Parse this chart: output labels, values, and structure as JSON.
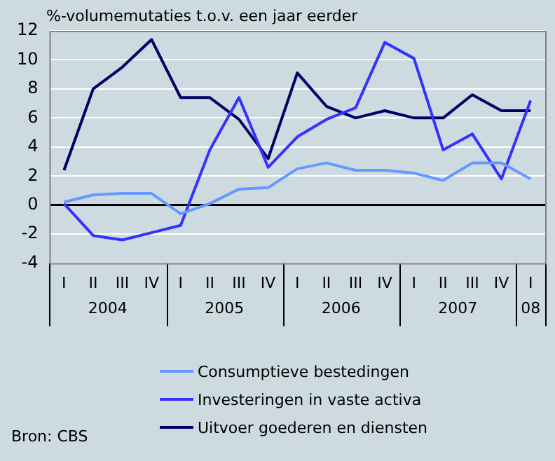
{
  "chart_data": {
    "type": "line",
    "title": "%-volumemutaties t.o.v. een jaar eerder",
    "categories": [
      "I",
      "II",
      "III",
      "IV",
      "I",
      "II",
      "III",
      "IV",
      "I",
      "II",
      "III",
      "IV",
      "I",
      "II",
      "III",
      "IV",
      "I"
    ],
    "series": [
      {
        "name": "Consumptieve bestedingen",
        "color": "#6699ff",
        "values": [
          0.2,
          0.7,
          0.8,
          0.8,
          -0.6,
          0.1,
          1.1,
          1.2,
          2.5,
          2.9,
          2.4,
          2.4,
          2.2,
          1.7,
          2.9,
          2.9,
          1.8
        ]
      },
      {
        "name": "Investeringen in vaste activa",
        "color": "#3333ff",
        "values": [
          0.1,
          -2.1,
          -2.4,
          -1.9,
          -1.4,
          3.8,
          7.4,
          2.6,
          4.7,
          5.9,
          6.7,
          11.2,
          10.1,
          3.8,
          4.9,
          1.8,
          7.2
        ]
      },
      {
        "name": "Uitvoer goederen en diensten",
        "color": "#000066",
        "values": [
          2.4,
          8.0,
          9.5,
          11.4,
          7.4,
          7.4,
          5.9,
          3.2,
          9.1,
          6.8,
          6.0,
          6.5,
          6.0,
          6.0,
          7.6,
          6.5,
          6.5
        ]
      }
    ],
    "ylim": [
      -4,
      12
    ],
    "yticks": [
      -4,
      -2,
      0,
      2,
      4,
      6,
      8,
      10,
      12
    ],
    "grid": "y",
    "legend": "bottom",
    "marker": "none",
    "line_style": "solid",
    "annotations": [
      "2004",
      "2005",
      "2006",
      "2007",
      "08",
      "Bron: CBS"
    ]
  }
}
